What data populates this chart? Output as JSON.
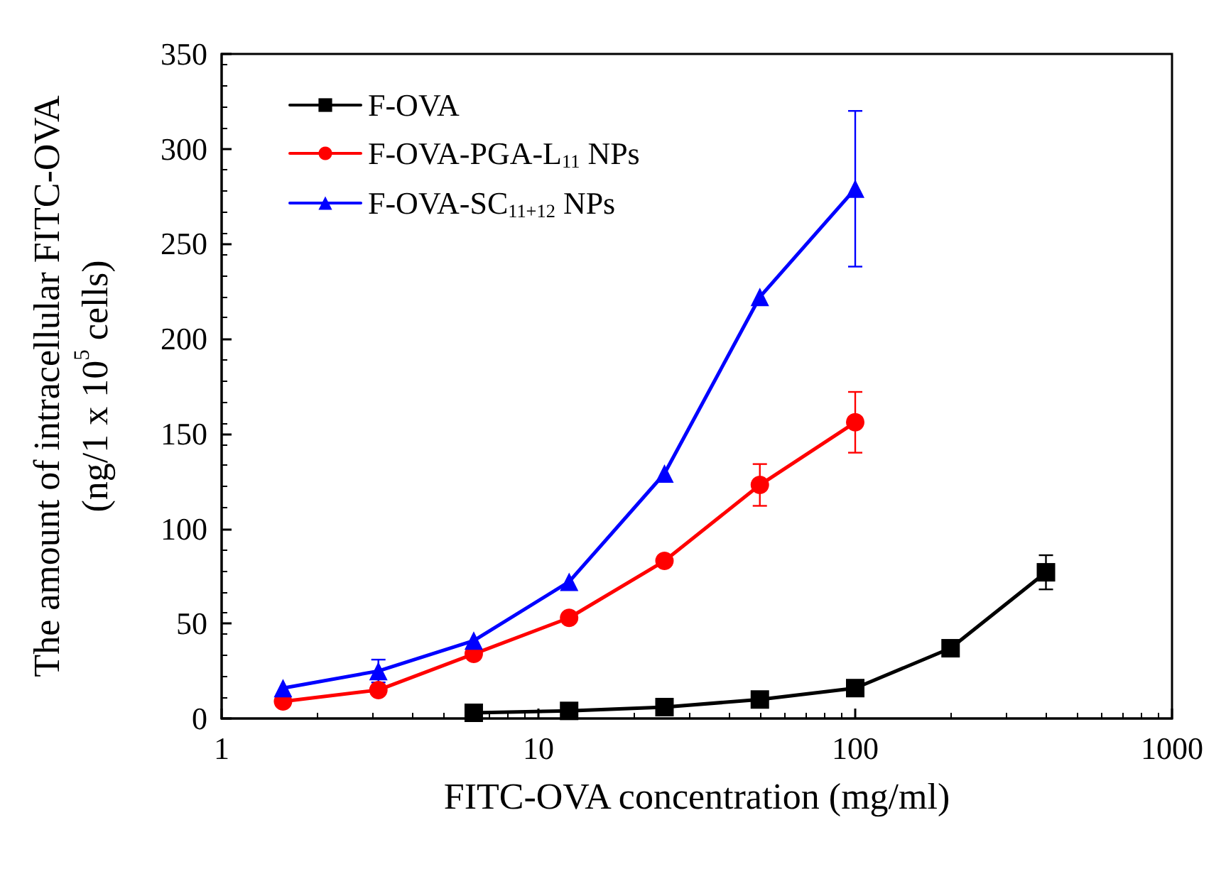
{
  "chart_data": {
    "type": "line",
    "xlabel": "FITC-OVA concentration (mg/ml)",
    "ylabel": "The amount of intracellular FITC-OVA\n(ng/1 x 10$^{5}$ cells)",
    "log": "x",
    "xlim": [
      1,
      1000
    ],
    "xticks": [
      1,
      10,
      100,
      1000
    ],
    "ylim": [
      0,
      350
    ],
    "yticks": [
      0,
      50,
      100,
      150,
      200,
      250,
      300,
      350
    ],
    "grid": false,
    "legend": "top left",
    "line_style": "solid",
    "series": [
      {
        "name": "F-OVA",
        "color": "#000000",
        "marker": "square",
        "x": [
          6.25,
          12.5,
          25,
          50,
          100,
          200,
          400
        ],
        "values": [
          3,
          4,
          6,
          10,
          16,
          37,
          77
        ],
        "errors": [
          null,
          null,
          null,
          null,
          null,
          null,
          9
        ]
      },
      {
        "name": "F-OVA-PGA-L$_{11}$ NPs",
        "color": "#ff0000",
        "marker": "circle",
        "x": [
          1.5625,
          3.125,
          6.25,
          12.5,
          25,
          50,
          100
        ],
        "values": [
          9,
          15,
          34,
          53,
          83,
          123,
          156
        ],
        "errors": [
          null,
          null,
          null,
          null,
          null,
          11,
          16
        ]
      },
      {
        "name": "F-OVA-SC$_{11+12}$ NPs",
        "color": "#0000ff",
        "marker": "triangle",
        "x": [
          1.5625,
          3.125,
          6.25,
          12.5,
          25,
          50,
          100
        ],
        "values": [
          16,
          25,
          41,
          72,
          129,
          222,
          279
        ],
        "errors": [
          null,
          6,
          null,
          null,
          null,
          null,
          41
        ]
      }
    ]
  }
}
